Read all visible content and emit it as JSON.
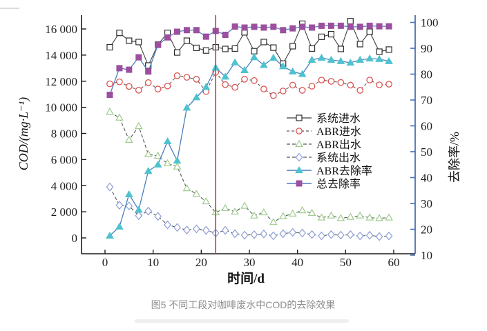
{
  "figure": {
    "caption": "图5 不同工段对咖啡废水中COD的去除效果"
  },
  "chart_data": {
    "type": "line",
    "caption": "图5 不同工段对咖啡废水中COD的去除效果",
    "x_label": "时间/d",
    "y_left_label": "COD/(mg·L⁻¹)",
    "y_right_label": "去除率/%",
    "x_range": [
      0,
      60
    ],
    "y_left_range": [
      0,
      16000
    ],
    "y_right_range": [
      10,
      100
    ],
    "grid": "off",
    "legend_position": "center-right",
    "x_ticks": [
      0,
      10,
      20,
      30,
      40,
      50,
      60
    ],
    "x_tick_labels": [
      "0",
      "10",
      "20",
      "30",
      "40",
      "50",
      "60"
    ],
    "y_left_ticks": [
      0,
      2000,
      4000,
      6000,
      8000,
      10000,
      12000,
      14000,
      16000
    ],
    "y_left_tick_labels": [
      "0",
      "2 000",
      "4 000",
      "6 000",
      "8 000",
      "10 000",
      "12 000",
      "14 000",
      "16 000"
    ],
    "y_right_ticks": [
      10,
      20,
      30,
      40,
      50,
      60,
      70,
      80,
      90,
      100
    ],
    "y_right_tick_labels": [
      "10",
      "20",
      "30",
      "40",
      "50",
      "60",
      "70",
      "80",
      "90",
      "100"
    ],
    "annotation_vline": {
      "x": 23,
      "color": "#ee2b22"
    },
    "colors": {
      "right_axis_spine": "#4a6fb5",
      "removal_line": "#4a7ebb",
      "cod_line": "#4f4f4f"
    },
    "days": [
      1,
      3,
      5,
      7,
      9,
      11,
      13,
      15,
      17,
      19,
      21,
      23,
      25,
      27,
      29,
      31,
      33,
      35,
      37,
      39,
      41,
      43,
      45,
      47,
      49,
      51,
      53,
      55,
      57,
      59
    ],
    "series": [
      {
        "label": "系统进水",
        "axis": "left",
        "marker": "square-open",
        "marker_color": "#2e2e2e",
        "line_color": "#3f3f3f",
        "line_dash": "",
        "values": [
          14600,
          15700,
          15100,
          15000,
          13200,
          14800,
          15700,
          14200,
          15100,
          14550,
          14350,
          14600,
          14470,
          14500,
          15740,
          14300,
          15000,
          14570,
          13350,
          14680,
          16400,
          14500,
          15400,
          15600,
          14470,
          16600,
          14840,
          15790,
          14260,
          14420
        ]
      },
      {
        "label": "ABR进水",
        "axis": "left",
        "marker": "circle-open",
        "marker_color": "#da5350",
        "line_color": "#6a5252",
        "line_dash": "4 3",
        "values": [
          11800,
          11950,
          11600,
          11310,
          11890,
          11400,
          11630,
          12420,
          12300,
          12150,
          11210,
          12680,
          11740,
          11530,
          12150,
          12050,
          11400,
          10900,
          11250,
          11700,
          11300,
          11620,
          12090,
          11990,
          11900,
          11700,
          11300,
          12090,
          11720,
          11770
        ]
      },
      {
        "label": "ABR出水",
        "axis": "left",
        "marker": "triangle-open",
        "marker_color": "#9ecb8c",
        "line_color": "#555555",
        "line_dash": "5 3",
        "values": [
          9650,
          9200,
          7500,
          8550,
          6400,
          6280,
          5700,
          5450,
          3790,
          3370,
          2790,
          1950,
          2270,
          2000,
          2450,
          1700,
          1950,
          1200,
          1650,
          1850,
          2100,
          1900,
          1550,
          1700,
          1500,
          1600,
          1700,
          1550,
          1500,
          1550
        ]
      },
      {
        "label": "系统出水",
        "axis": "left",
        "marker": "diamond-open",
        "marker_color": "#8d9fd6",
        "line_color": "#555555",
        "line_dash": "5 3",
        "values": [
          3900,
          2500,
          2450,
          1700,
          2050,
          1650,
          1000,
          800,
          600,
          690,
          580,
          370,
          580,
          320,
          210,
          250,
          300,
          160,
          320,
          420,
          370,
          260,
          160,
          260,
          210,
          250,
          150,
          200,
          100,
          150
        ]
      },
      {
        "label": "ABR去除率",
        "axis": "right",
        "marker": "triangle-filled",
        "marker_color": "#4fc2cf",
        "line_color": "#4a7ebb",
        "line_dash": "",
        "values": [
          17.5,
          21,
          33.5,
          27.5,
          42.5,
          45,
          54,
          46.5,
          67,
          71,
          75,
          82.5,
          79,
          84.5,
          81.5,
          86.5,
          83.5,
          86.3,
          83,
          81,
          80,
          85.5,
          86.3,
          85.5,
          85,
          84.4,
          85.5,
          86,
          85.8,
          85
        ]
      },
      {
        "label": "总去除率",
        "axis": "right",
        "marker": "square-filled",
        "marker_color": "#9c4f9f",
        "line_color": "#4a7ebb",
        "line_dash": "",
        "values": [
          72,
          82.3,
          81.7,
          86.5,
          81,
          91.3,
          94.2,
          96.4,
          97,
          97,
          94.5,
          96.7,
          95.2,
          98.4,
          98,
          98.3,
          98,
          98.3,
          97,
          97.7,
          98.3,
          98,
          98.7,
          98.7,
          98.7,
          98.3,
          98.3,
          98.7,
          98.5,
          98.5
        ]
      }
    ]
  }
}
